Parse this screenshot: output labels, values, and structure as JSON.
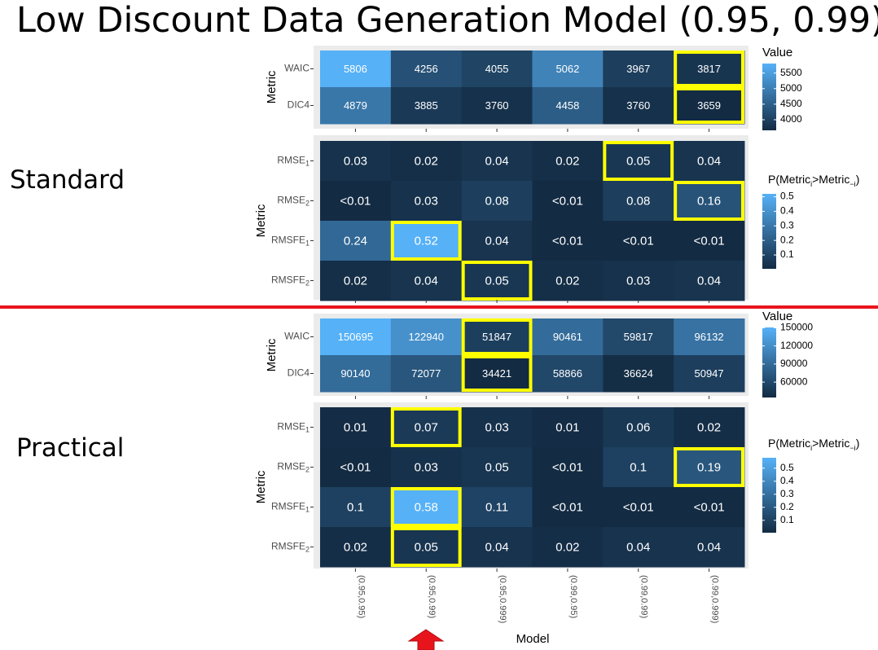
{
  "title": "Low Discount Data Generation Model (0.95, 0.99)",
  "sections": {
    "standard": "Standard",
    "practical": "Practical"
  },
  "colors": {
    "divider": "#e8141c",
    "highlight": "#ffff00",
    "arrow": "#e8141c",
    "scale_low": "#132b43",
    "scale_high": "#56b1f7",
    "panel_bg": "#ebebeb"
  },
  "chart_data": [
    {
      "type": "heatmap",
      "section": "Standard",
      "title": "",
      "xlabel": "",
      "ylabel": "Metric",
      "categories": [
        "(0.95,0.95)",
        "(0.95,0.99)",
        "(0.95,0.999)",
        "(0.99,0.95)",
        "(0.99,0.99)",
        "(0.99,0.999)"
      ],
      "rows": [
        "WAIC",
        "DIC4"
      ],
      "labels": [
        [
          "5806",
          "4256",
          "4055",
          "5062",
          "3967",
          "3817"
        ],
        [
          "4879",
          "3885",
          "3760",
          "4458",
          "3760",
          "3659"
        ]
      ],
      "values": [
        [
          5806,
          4256,
          4055,
          5062,
          3967,
          3817
        ],
        [
          4879,
          3885,
          3760,
          4458,
          3760,
          3659
        ]
      ],
      "highlighted": [
        [
          0,
          5
        ],
        [
          1,
          5
        ]
      ],
      "legend": {
        "title": "Value",
        "min": 3659,
        "max": 5806,
        "ticks": [
          "5500",
          "5000",
          "4500",
          "4000"
        ],
        "tick_values": [
          5500,
          5000,
          4500,
          4000
        ]
      }
    },
    {
      "type": "heatmap",
      "section": "Standard",
      "title": "",
      "xlabel": "",
      "ylabel": "Metric",
      "categories": [
        "(0.95,0.95)",
        "(0.95,0.99)",
        "(0.95,0.999)",
        "(0.99,0.95)",
        "(0.99,0.99)",
        "(0.99,0.999)"
      ],
      "rows": [
        {
          "base": "RMSE",
          "sub": "1"
        },
        {
          "base": "RMSE",
          "sub": "2"
        },
        {
          "base": "RMSFE",
          "sub": "1"
        },
        {
          "base": "RMSFE",
          "sub": "2"
        }
      ],
      "labels": [
        [
          "0.03",
          "0.02",
          "0.04",
          "0.02",
          "0.05",
          "0.04"
        ],
        [
          "<0.01",
          "0.03",
          "0.08",
          "<0.01",
          "0.08",
          "0.16"
        ],
        [
          "0.24",
          "0.52",
          "0.04",
          "<0.01",
          "<0.01",
          "<0.01"
        ],
        [
          "0.02",
          "0.04",
          "0.05",
          "0.02",
          "0.03",
          "0.04"
        ]
      ],
      "values": [
        [
          0.03,
          0.02,
          0.04,
          0.02,
          0.05,
          0.04
        ],
        [
          0.005,
          0.03,
          0.08,
          0.005,
          0.08,
          0.16
        ],
        [
          0.24,
          0.52,
          0.04,
          0.005,
          0.005,
          0.005
        ],
        [
          0.02,
          0.04,
          0.05,
          0.02,
          0.03,
          0.04
        ]
      ],
      "highlighted": [
        [
          0,
          4
        ],
        [
          1,
          5
        ],
        [
          2,
          1
        ],
        [
          3,
          2
        ]
      ],
      "legend": {
        "title": {
          "pre": "P(Metric",
          "s1": "i",
          "mid": ">Metric",
          "s2": "−i",
          "post": ")"
        },
        "min": 0.005,
        "max": 0.52,
        "ticks": [
          "0.5",
          "0.4",
          "0.3",
          "0.2",
          "0.1"
        ],
        "tick_values": [
          0.5,
          0.4,
          0.3,
          0.2,
          0.1
        ]
      }
    },
    {
      "type": "heatmap",
      "section": "Practical",
      "title": "",
      "xlabel": "",
      "ylabel": "Metric",
      "categories": [
        "(0.95,0.95)",
        "(0.95,0.99)",
        "(0.95,0.999)",
        "(0.99,0.95)",
        "(0.99,0.99)",
        "(0.99,0.999)"
      ],
      "rows": [
        "WAIC",
        "DIC4"
      ],
      "labels": [
        [
          "150695",
          "122940",
          "51847",
          "90461",
          "59817",
          "96132"
        ],
        [
          "90140",
          "72077",
          "34421",
          "58866",
          "36624",
          "50947"
        ]
      ],
      "values": [
        [
          150695,
          122940,
          51847,
          90461,
          59817,
          96132
        ],
        [
          90140,
          72077,
          34421,
          58866,
          36624,
          50947
        ]
      ],
      "highlighted": [
        [
          0,
          2
        ],
        [
          1,
          2
        ]
      ],
      "legend": {
        "title": "Value",
        "min": 34421,
        "max": 150695,
        "ticks": [
          "150000",
          "120000",
          "90000",
          "60000"
        ],
        "tick_values": [
          150000,
          120000,
          90000,
          60000
        ]
      }
    },
    {
      "type": "heatmap",
      "section": "Practical",
      "title": "",
      "xlabel": "Model",
      "ylabel": "Metric",
      "categories": [
        "(0.95,0.95)",
        "(0.95,0.99)",
        "(0.95,0.999)",
        "(0.99,0.95)",
        "(0.99,0.99)",
        "(0.99,0.999)"
      ],
      "rows": [
        {
          "base": "RMSE",
          "sub": "1"
        },
        {
          "base": "RMSE",
          "sub": "2"
        },
        {
          "base": "RMSFE",
          "sub": "1"
        },
        {
          "base": "RMSFE",
          "sub": "2"
        }
      ],
      "labels": [
        [
          "0.01",
          "0.07",
          "0.03",
          "0.01",
          "0.06",
          "0.02"
        ],
        [
          "<0.01",
          "0.03",
          "0.05",
          "<0.01",
          "0.1",
          "0.19"
        ],
        [
          "0.1",
          "0.58",
          "0.11",
          "<0.01",
          "<0.01",
          "<0.01"
        ],
        [
          "0.02",
          "0.05",
          "0.04",
          "0.02",
          "0.04",
          "0.04"
        ]
      ],
      "values": [
        [
          0.01,
          0.07,
          0.03,
          0.01,
          0.06,
          0.02
        ],
        [
          0.005,
          0.03,
          0.05,
          0.005,
          0.1,
          0.19
        ],
        [
          0.1,
          0.58,
          0.11,
          0.005,
          0.005,
          0.005
        ],
        [
          0.02,
          0.05,
          0.04,
          0.02,
          0.04,
          0.04
        ]
      ],
      "highlighted": [
        [
          0,
          1
        ],
        [
          1,
          5
        ],
        [
          2,
          1
        ],
        [
          3,
          1
        ]
      ],
      "legend": {
        "title": {
          "pre": "P(Metric",
          "s1": "i",
          "mid": ">Metric",
          "s2": "−i",
          "post": ")"
        },
        "min": 0.005,
        "max": 0.58,
        "ticks": [
          "0.5",
          "0.4",
          "0.3",
          "0.2",
          "0.1"
        ],
        "tick_values": [
          0.5,
          0.4,
          0.3,
          0.2,
          0.1
        ]
      }
    }
  ]
}
